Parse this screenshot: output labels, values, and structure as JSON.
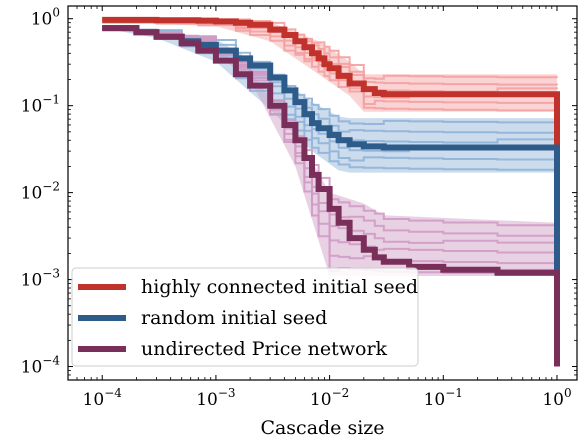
{
  "chart_data": {
    "type": "line",
    "title": "",
    "xlabel": "Cascade size",
    "ylabel": "",
    "xscale": "log",
    "yscale": "log",
    "xlim": [
      5e-05,
      1.5
    ],
    "ylim": [
      7e-05,
      1.4
    ],
    "grid": false,
    "legend_position": "lower-left",
    "x_ticks": [
      {
        "value": 0.0001,
        "base": "10",
        "exp": "−4"
      },
      {
        "value": 0.001,
        "base": "10",
        "exp": "−3"
      },
      {
        "value": 0.01,
        "base": "10",
        "exp": "−2"
      },
      {
        "value": 0.1,
        "base": "10",
        "exp": "−1"
      },
      {
        "value": 1,
        "base": "10",
        "exp": "0"
      }
    ],
    "y_ticks": [
      {
        "value": 1,
        "base": "10",
        "exp": "0"
      },
      {
        "value": 0.1,
        "base": "10",
        "exp": "−1"
      },
      {
        "value": 0.01,
        "base": "10",
        "exp": "−2"
      },
      {
        "value": 0.001,
        "base": "10",
        "exp": "−3"
      },
      {
        "value": 0.0001,
        "base": "10",
        "exp": "−4"
      }
    ],
    "series": [
      {
        "name": "highly connected initial seed",
        "color": "#c0322b",
        "light_color": "#f3a0a0",
        "band_x": [
          0.0001,
          0.001,
          0.003,
          0.008,
          0.015,
          0.02,
          1
        ],
        "band_low": [
          0.93,
          0.82,
          0.55,
          0.23,
          0.13,
          0.085,
          0.085
        ],
        "band_high": [
          1.0,
          0.99,
          0.92,
          0.55,
          0.32,
          0.23,
          0.23
        ],
        "x": [
          0.0001,
          0.0003,
          0.0007,
          0.001,
          0.0015,
          0.002,
          0.003,
          0.004,
          0.005,
          0.006,
          0.007,
          0.008,
          0.009,
          0.01,
          0.012,
          0.015,
          0.02,
          0.025,
          0.03,
          0.05,
          0.1,
          0.3,
          1.0
        ],
        "y": [
          0.97,
          0.96,
          0.95,
          0.93,
          0.9,
          0.85,
          0.75,
          0.65,
          0.55,
          0.47,
          0.4,
          0.35,
          0.3,
          0.27,
          0.22,
          0.18,
          0.155,
          0.14,
          0.135,
          0.135,
          0.135,
          0.135,
          0.135
        ],
        "end_y": 0.0001
      },
      {
        "name": "random initial seed",
        "color": "#2e5c8a",
        "light_color": "#8fb2d8",
        "band_x": [
          0.0001,
          0.0003,
          0.001,
          0.003,
          0.007,
          0.012,
          0.015,
          1
        ],
        "band_low": [
          0.78,
          0.6,
          0.32,
          0.09,
          0.03,
          0.018,
          0.017,
          0.017
        ],
        "band_high": [
          0.8,
          0.75,
          0.58,
          0.25,
          0.11,
          0.075,
          0.072,
          0.072
        ],
        "x": [
          0.0001,
          0.0002,
          0.0003,
          0.0005,
          0.0007,
          0.001,
          0.0015,
          0.002,
          0.003,
          0.004,
          0.005,
          0.006,
          0.007,
          0.008,
          0.01,
          0.012,
          0.015,
          0.02,
          0.03,
          0.05,
          0.1,
          0.3,
          1.0
        ],
        "y": [
          0.78,
          0.7,
          0.62,
          0.55,
          0.5,
          0.43,
          0.35,
          0.29,
          0.21,
          0.15,
          0.11,
          0.08,
          0.063,
          0.055,
          0.046,
          0.04,
          0.036,
          0.034,
          0.033,
          0.033,
          0.033,
          0.033,
          0.033
        ],
        "end_y": 0.0001
      },
      {
        "name": "undirected Price network",
        "color": "#7a2e5a",
        "light_color": "#cf9ac4",
        "band_x": [
          0.0001,
          0.0007,
          0.002,
          0.005,
          0.01,
          0.02,
          0.03,
          1
        ],
        "band_low": [
          0.78,
          0.55,
          0.2,
          0.02,
          0.0011,
          0.0011,
          0.0011,
          0.0011
        ],
        "band_high": [
          0.8,
          0.6,
          0.25,
          0.05,
          0.01,
          0.0075,
          0.0055,
          0.0045
        ],
        "x": [
          0.0001,
          0.0002,
          0.0003,
          0.0005,
          0.0007,
          0.001,
          0.0015,
          0.002,
          0.003,
          0.004,
          0.005,
          0.006,
          0.007,
          0.008,
          0.01,
          0.012,
          0.015,
          0.02,
          0.025,
          0.03,
          0.05,
          0.1,
          0.3,
          1.0
        ],
        "y": [
          0.78,
          0.7,
          0.62,
          0.52,
          0.43,
          0.33,
          0.23,
          0.17,
          0.1,
          0.06,
          0.04,
          0.025,
          0.016,
          0.011,
          0.0065,
          0.0045,
          0.003,
          0.0022,
          0.0018,
          0.0016,
          0.0014,
          0.0013,
          0.0012,
          0.0011
        ],
        "end_y": 0.0001
      }
    ]
  }
}
